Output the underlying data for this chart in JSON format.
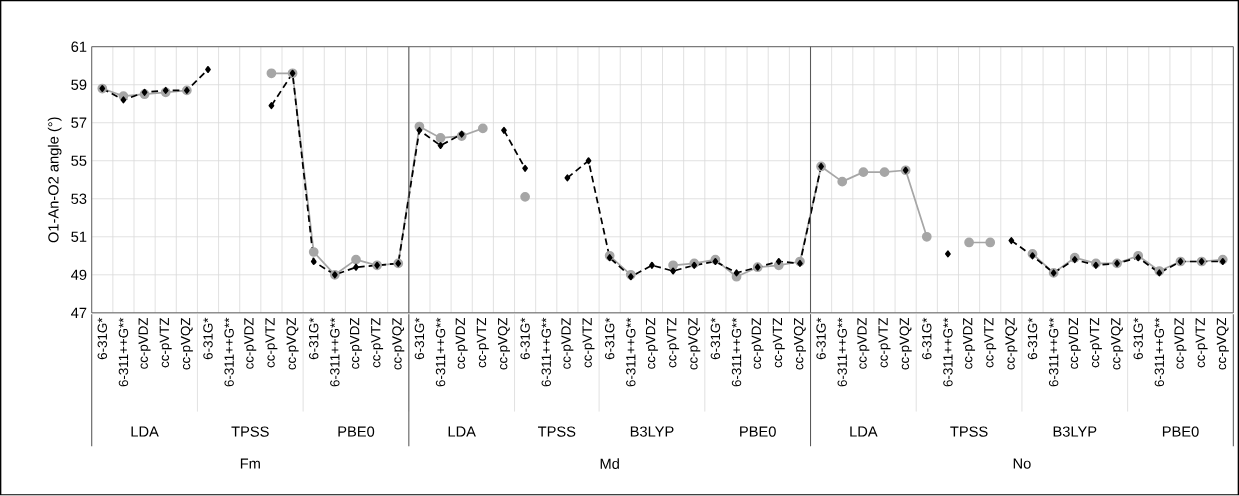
{
  "chart_data": {
    "type": "line",
    "ylabel": "O1-An-O2 angle (°)",
    "categories": [
      "6-31G*",
      "6-311++G**",
      "cc-pVDZ",
      "cc-pVTZ",
      "cc-pVQZ",
      "6-31G*",
      "6-311++G**",
      "cc-pVDZ",
      "cc-pVTZ",
      "cc-pVQZ",
      "6-31G*",
      "6-311++G**",
      "cc-pVDZ",
      "cc-pVTZ",
      "cc-pVQZ",
      "6-31G*",
      "6-311++G**",
      "cc-pVDZ",
      "cc-pVTZ",
      "cc-pVQZ",
      "6-31G*",
      "6-311++G**",
      "cc-pVDZ",
      "cc-pVTZ",
      "6-31G*",
      "6-311++G**",
      "cc-pVDZ",
      "cc-pVTZ",
      "cc-pVQZ",
      "6-31G*",
      "6-311++G**",
      "cc-pVDZ",
      "cc-pVTZ",
      "cc-pVQZ",
      "6-31G*",
      "6-311++G**",
      "cc-pVDZ",
      "cc-pVTZ",
      "cc-pVQZ",
      "6-31G*",
      "6-311++G**",
      "cc-pVDZ",
      "cc-pVTZ",
      "cc-pVQZ",
      "6-31G*",
      "6-311++G**",
      "cc-pVDZ",
      "cc-pVTZ",
      "cc-pVQZ",
      "6-31G*",
      "6-311++G**",
      "cc-pVDZ",
      "cc-pVTZ",
      "cc-pVQZ"
    ],
    "series": [
      {
        "color": "#a6a6a6",
        "marker": "circle",
        "line_style": "solid",
        "values": [
          58.8,
          58.4,
          58.5,
          58.6,
          58.7,
          null,
          null,
          null,
          59.6,
          59.6,
          50.2,
          49.0,
          49.8,
          49.5,
          49.6,
          56.8,
          56.2,
          56.3,
          56.7,
          null,
          53.1,
          null,
          null,
          null,
          50.0,
          49.0,
          null,
          49.5,
          49.6,
          49.8,
          48.9,
          49.4,
          49.5,
          49.7,
          54.7,
          53.9,
          54.4,
          54.4,
          54.5,
          51.0,
          null,
          50.7,
          50.7,
          null,
          50.1,
          49.1,
          49.9,
          49.6,
          49.6,
          50.0,
          49.2,
          49.7,
          49.7,
          49.8
        ]
      },
      {
        "color": "#000000",
        "marker": "diamond",
        "line_style": "dashed",
        "values": [
          58.8,
          58.2,
          58.6,
          58.7,
          58.7,
          59.8,
          null,
          null,
          57.9,
          59.6,
          49.7,
          49.0,
          49.4,
          49.5,
          49.6,
          56.6,
          55.8,
          56.4,
          null,
          56.6,
          54.6,
          null,
          54.1,
          55.0,
          49.9,
          48.9,
          49.5,
          49.2,
          49.5,
          49.7,
          49.1,
          49.4,
          49.7,
          49.6,
          54.7,
          null,
          null,
          null,
          54.5,
          null,
          50.1,
          null,
          null,
          50.8,
          50.0,
          49.1,
          49.8,
          49.5,
          49.6,
          49.9,
          49.1,
          49.7,
          49.7,
          49.7
        ]
      }
    ],
    "ylim": [
      47,
      61
    ],
    "yticks": [
      47,
      49,
      51,
      53,
      55,
      57,
      59,
      61
    ],
    "grid": true,
    "legend": false,
    "annotations": [
      "LDA",
      "TPSS",
      "PBE0",
      "LDA",
      "TPSS",
      "B3LYP",
      "PBE0",
      "LDA",
      "TPSS",
      "B3LYP",
      "PBE0",
      "Fm",
      "Md",
      "No"
    ]
  }
}
